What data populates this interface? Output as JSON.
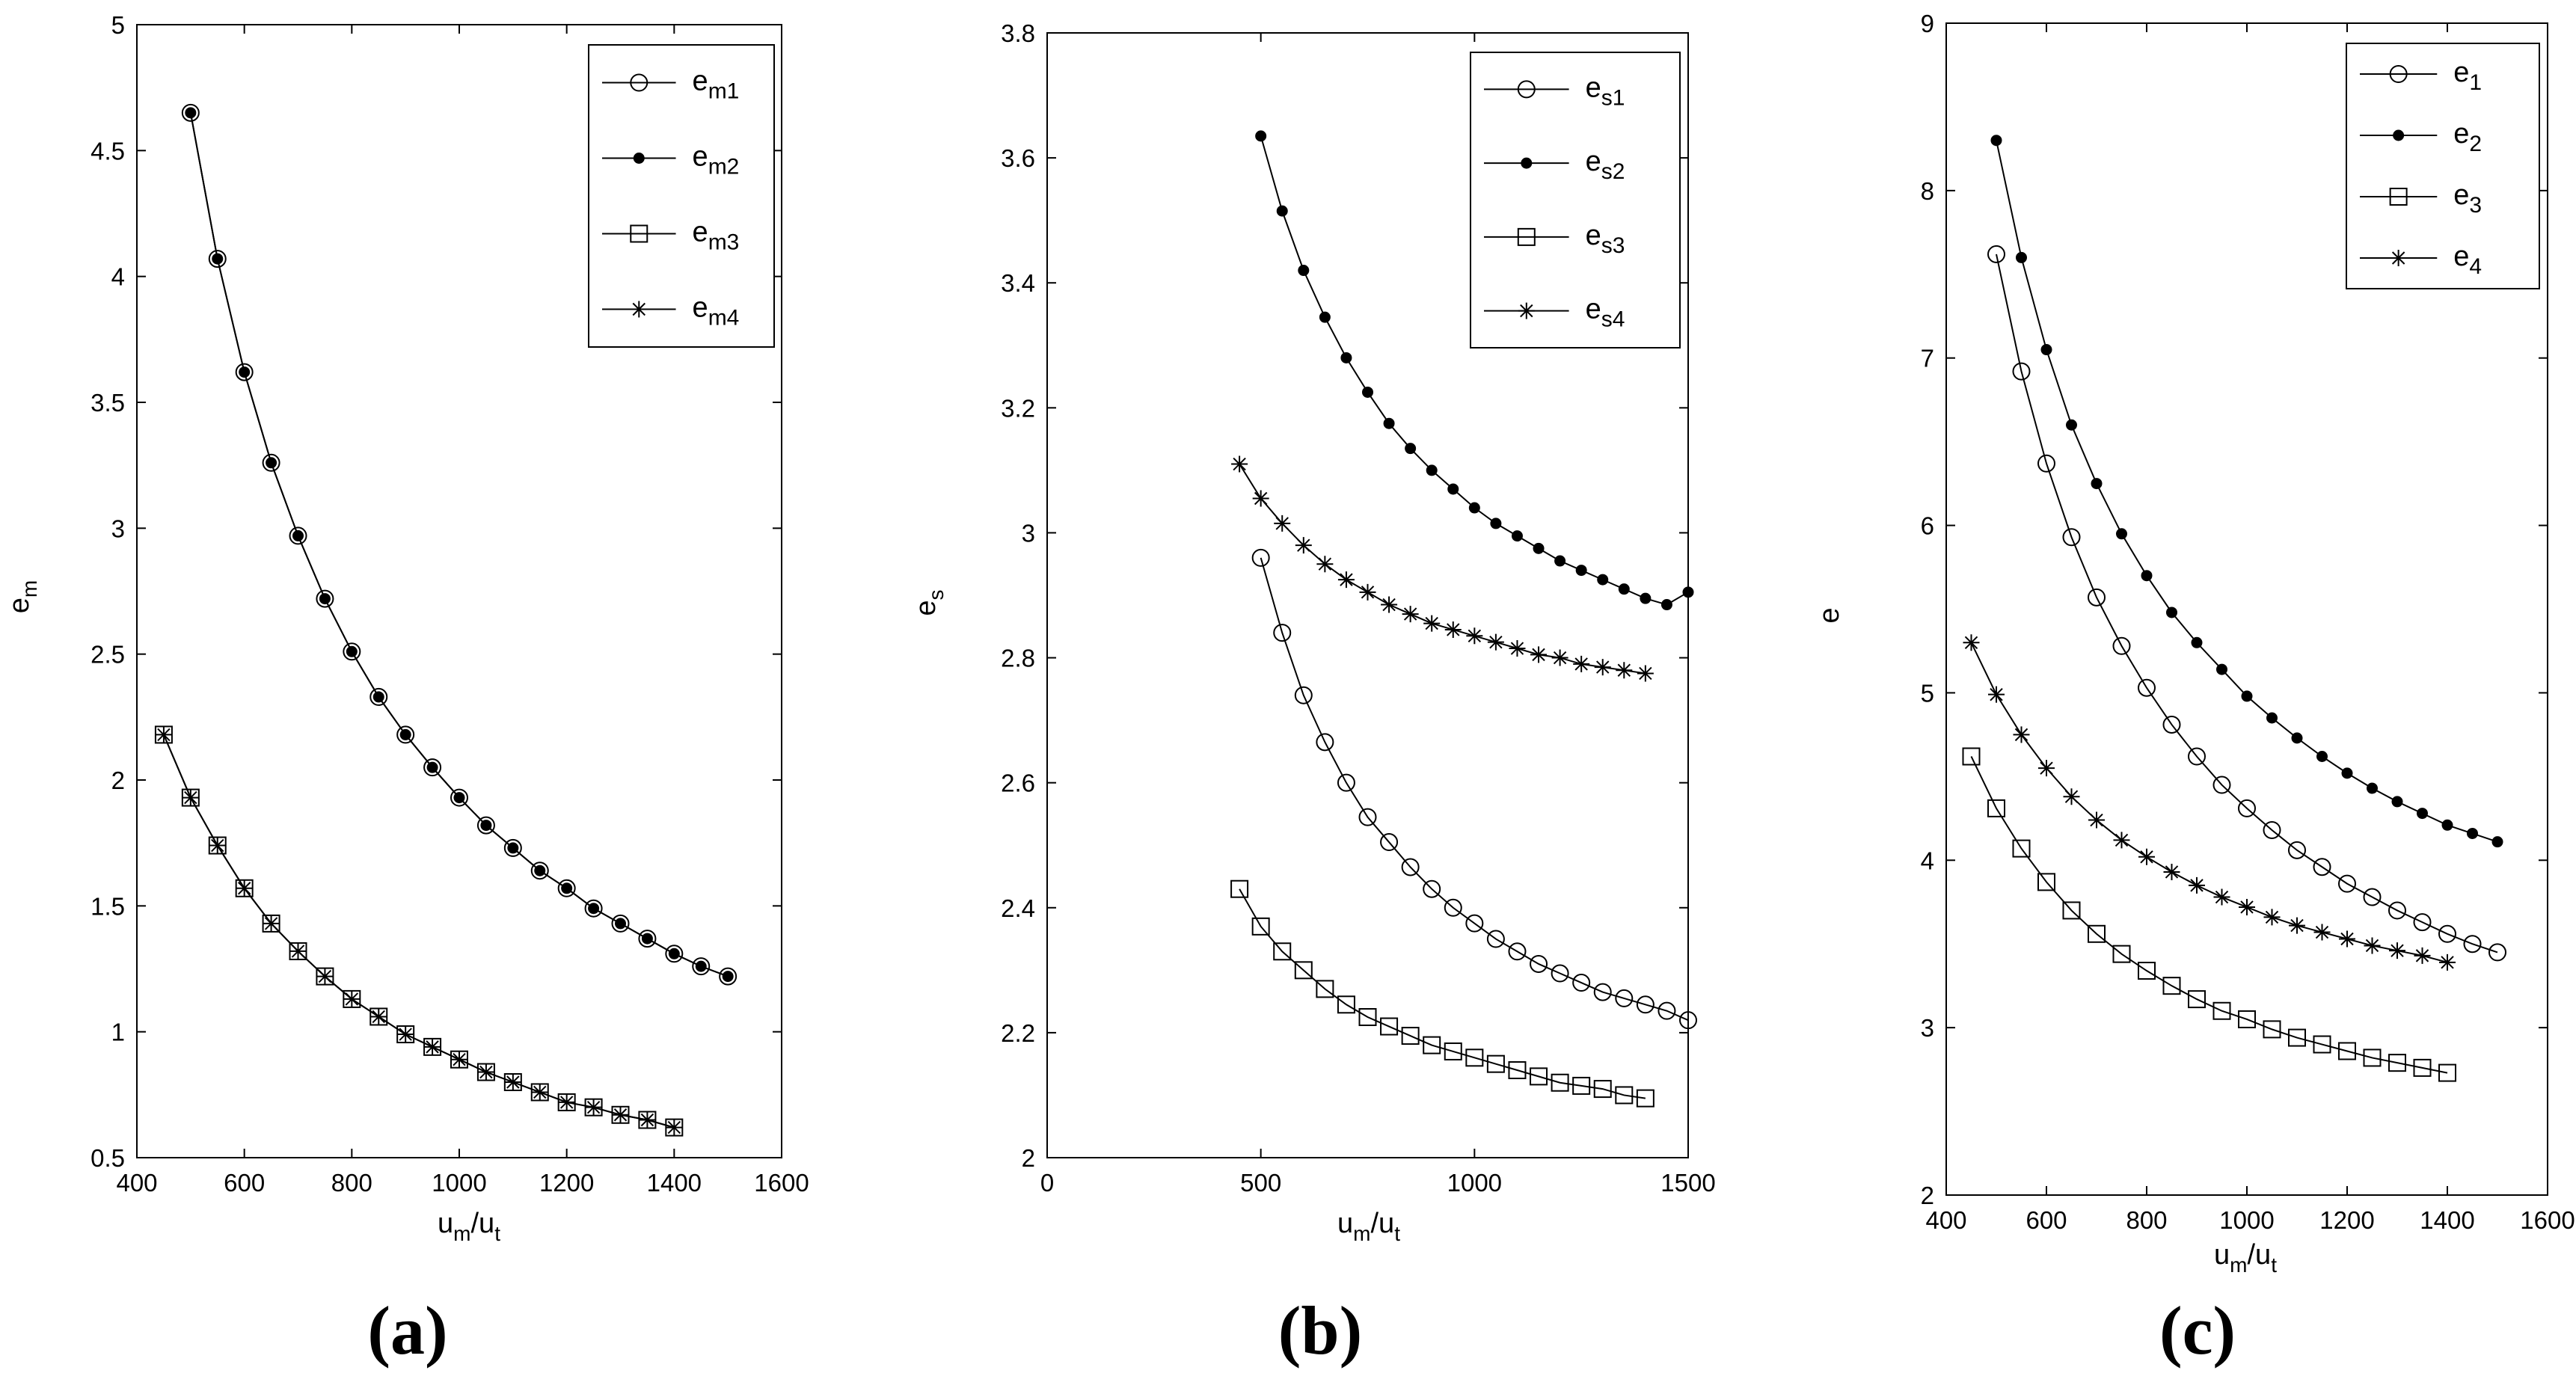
{
  "chart_data": [
    {
      "type": "line",
      "panel_label": "(a)",
      "xlabel": {
        "main": "u",
        "sub": "m",
        "sep": "/u",
        "sub2": "t"
      },
      "ylabel": {
        "main": "e",
        "sub": "m"
      },
      "xlim": [
        400,
        1600
      ],
      "ylim": [
        0.5,
        5
      ],
      "xticks": [
        "400",
        "600",
        "800",
        "1000",
        "1200",
        "1400",
        "1600"
      ],
      "yticks": [
        "0.5",
        "1",
        "1.5",
        "2",
        "2.5",
        "3",
        "3.5",
        "4",
        "4.5",
        "5"
      ],
      "legend_position": "top-right",
      "series": [
        {
          "name": "e",
          "sub": "m1",
          "marker": "circle",
          "x": [
            500,
            550,
            600,
            650,
            700,
            750,
            800,
            850,
            900,
            950,
            1000,
            1050,
            1100,
            1150,
            1200,
            1250,
            1300,
            1350,
            1400,
            1450,
            1500
          ],
          "values": [
            4.65,
            4.07,
            3.62,
            3.26,
            2.97,
            2.72,
            2.51,
            2.33,
            2.18,
            2.05,
            1.93,
            1.82,
            1.73,
            1.64,
            1.57,
            1.49,
            1.43,
            1.37,
            1.31,
            1.26,
            1.22
          ]
        },
        {
          "name": "e",
          "sub": "m2",
          "marker": "dot",
          "x": [
            500,
            550,
            600,
            650,
            700,
            750,
            800,
            850,
            900,
            950,
            1000,
            1050,
            1100,
            1150,
            1200,
            1250,
            1300,
            1350,
            1400,
            1450,
            1500
          ],
          "values": [
            4.65,
            4.07,
            3.62,
            3.26,
            2.97,
            2.72,
            2.51,
            2.33,
            2.18,
            2.05,
            1.93,
            1.82,
            1.73,
            1.64,
            1.57,
            1.49,
            1.43,
            1.37,
            1.31,
            1.26,
            1.22
          ]
        },
        {
          "name": "e",
          "sub": "m3",
          "marker": "square",
          "x": [
            450,
            500,
            550,
            600,
            650,
            700,
            750,
            800,
            850,
            900,
            950,
            1000,
            1050,
            1100,
            1150,
            1200,
            1250,
            1300,
            1350,
            1400
          ],
          "values": [
            2.18,
            1.93,
            1.74,
            1.57,
            1.43,
            1.32,
            1.22,
            1.13,
            1.06,
            0.99,
            0.94,
            0.89,
            0.84,
            0.8,
            0.76,
            0.72,
            0.7,
            0.67,
            0.65,
            0.62
          ]
        },
        {
          "name": "e",
          "sub": "m4",
          "marker": "star",
          "x": [
            450,
            500,
            550,
            600,
            650,
            700,
            750,
            800,
            850,
            900,
            950,
            1000,
            1050,
            1100,
            1150,
            1200,
            1250,
            1300,
            1350,
            1400
          ],
          "values": [
            2.18,
            1.93,
            1.74,
            1.57,
            1.43,
            1.32,
            1.22,
            1.13,
            1.06,
            0.99,
            0.94,
            0.89,
            0.84,
            0.8,
            0.76,
            0.72,
            0.7,
            0.67,
            0.65,
            0.62
          ]
        }
      ]
    },
    {
      "type": "line",
      "panel_label": "(b)",
      "xlabel": {
        "main": "u",
        "sub": "m",
        "sep": "/u",
        "sub2": "t"
      },
      "ylabel": {
        "main": "e",
        "sub": "s"
      },
      "xlim": [
        0,
        1500
      ],
      "ylim": [
        2,
        3.8
      ],
      "xticks": [
        "0",
        "500",
        "1000",
        "1500"
      ],
      "yticks": [
        "2",
        "2.2",
        "2.4",
        "2.6",
        "2.8",
        "3",
        "3.2",
        "3.4",
        "3.6",
        "3.8"
      ],
      "legend_position": "top-right",
      "series": [
        {
          "name": "e",
          "sub": "s1",
          "marker": "circle",
          "x": [
            500,
            550,
            600,
            650,
            700,
            750,
            800,
            850,
            900,
            950,
            1000,
            1050,
            1100,
            1150,
            1200,
            1250,
            1300,
            1350,
            1400,
            1450,
            1500
          ],
          "values": [
            2.96,
            2.84,
            2.74,
            2.665,
            2.6,
            2.545,
            2.505,
            2.465,
            2.43,
            2.4,
            2.375,
            2.35,
            2.33,
            2.31,
            2.295,
            2.28,
            2.265,
            2.255,
            2.245,
            2.235,
            2.22
          ]
        },
        {
          "name": "e",
          "sub": "s2",
          "marker": "dot",
          "x": [
            500,
            550,
            600,
            650,
            700,
            750,
            800,
            850,
            900,
            950,
            1000,
            1050,
            1100,
            1150,
            1200,
            1250,
            1300,
            1350,
            1400,
            1450,
            1500
          ],
          "values": [
            3.635,
            3.515,
            3.42,
            3.345,
            3.28,
            3.225,
            3.175,
            3.135,
            3.1,
            3.07,
            3.04,
            3.015,
            2.995,
            2.975,
            2.955,
            2.94,
            2.925,
            2.91,
            2.895,
            2.885,
            2.905
          ]
        },
        {
          "name": "e",
          "sub": "s3",
          "marker": "square",
          "x": [
            450,
            500,
            550,
            600,
            650,
            700,
            750,
            800,
            850,
            900,
            950,
            1000,
            1050,
            1100,
            1150,
            1200,
            1250,
            1300,
            1350,
            1400
          ],
          "values": [
            2.43,
            2.37,
            2.33,
            2.3,
            2.27,
            2.245,
            2.225,
            2.21,
            2.195,
            2.18,
            2.17,
            2.16,
            2.15,
            2.14,
            2.13,
            2.12,
            2.115,
            2.11,
            2.1,
            2.095
          ]
        },
        {
          "name": "e",
          "sub": "s4",
          "marker": "star",
          "x": [
            450,
            500,
            550,
            600,
            650,
            700,
            750,
            800,
            850,
            900,
            950,
            1000,
            1050,
            1100,
            1150,
            1200,
            1250,
            1300,
            1350,
            1400
          ],
          "values": [
            3.11,
            3.055,
            3.015,
            2.98,
            2.95,
            2.925,
            2.905,
            2.885,
            2.87,
            2.855,
            2.845,
            2.835,
            2.825,
            2.815,
            2.805,
            2.8,
            2.79,
            2.785,
            2.78,
            2.775
          ]
        }
      ]
    },
    {
      "type": "line",
      "panel_label": "(c)",
      "xlabel": {
        "main": "u",
        "sub": "m",
        "sep": "/u",
        "sub2": "t"
      },
      "ylabel": {
        "main": "e",
        "sub": ""
      },
      "xlim": [
        400,
        1600
      ],
      "ylim": [
        2,
        9
      ],
      "xticks": [
        "400",
        "600",
        "800",
        "1000",
        "1200",
        "1400",
        "1600"
      ],
      "yticks": [
        "2",
        "3",
        "4",
        "5",
        "6",
        "7",
        "8",
        "9"
      ],
      "legend_position": "top-right",
      "series": [
        {
          "name": "e",
          "sub": "1",
          "marker": "circle",
          "x": [
            500,
            550,
            600,
            650,
            700,
            750,
            800,
            850,
            900,
            950,
            1000,
            1050,
            1100,
            1150,
            1200,
            1250,
            1300,
            1350,
            1400,
            1450,
            1500
          ],
          "values": [
            7.62,
            6.92,
            6.37,
            5.93,
            5.57,
            5.28,
            5.03,
            4.81,
            4.62,
            4.45,
            4.31,
            4.18,
            4.06,
            3.96,
            3.86,
            3.78,
            3.7,
            3.63,
            3.56,
            3.5,
            3.45
          ]
        },
        {
          "name": "e",
          "sub": "2",
          "marker": "dot",
          "x": [
            500,
            550,
            600,
            650,
            700,
            750,
            800,
            850,
            900,
            950,
            1000,
            1050,
            1100,
            1150,
            1200,
            1250,
            1300,
            1350,
            1400,
            1450,
            1500
          ],
          "values": [
            8.3,
            7.6,
            7.05,
            6.6,
            6.25,
            5.95,
            5.7,
            5.48,
            5.3,
            5.14,
            4.98,
            4.85,
            4.73,
            4.62,
            4.52,
            4.43,
            4.35,
            4.28,
            4.21,
            4.16,
            4.11
          ]
        },
        {
          "name": "e",
          "sub": "3",
          "marker": "square",
          "x": [
            450,
            500,
            550,
            600,
            650,
            700,
            750,
            800,
            850,
            900,
            950,
            1000,
            1050,
            1100,
            1150,
            1200,
            1250,
            1300,
            1350,
            1400
          ],
          "values": [
            4.62,
            4.31,
            4.07,
            3.87,
            3.7,
            3.56,
            3.44,
            3.34,
            3.25,
            3.17,
            3.1,
            3.05,
            2.99,
            2.94,
            2.9,
            2.86,
            2.82,
            2.79,
            2.76,
            2.73
          ]
        },
        {
          "name": "e",
          "sub": "4",
          "marker": "star",
          "x": [
            450,
            500,
            550,
            600,
            650,
            700,
            750,
            800,
            850,
            900,
            950,
            1000,
            1050,
            1100,
            1150,
            1200,
            1250,
            1300,
            1350,
            1400
          ],
          "values": [
            5.3,
            4.99,
            4.75,
            4.55,
            4.38,
            4.24,
            4.12,
            4.02,
            3.93,
            3.85,
            3.78,
            3.72,
            3.66,
            3.61,
            3.57,
            3.53,
            3.49,
            3.46,
            3.43,
            3.39
          ]
        }
      ]
    }
  ]
}
